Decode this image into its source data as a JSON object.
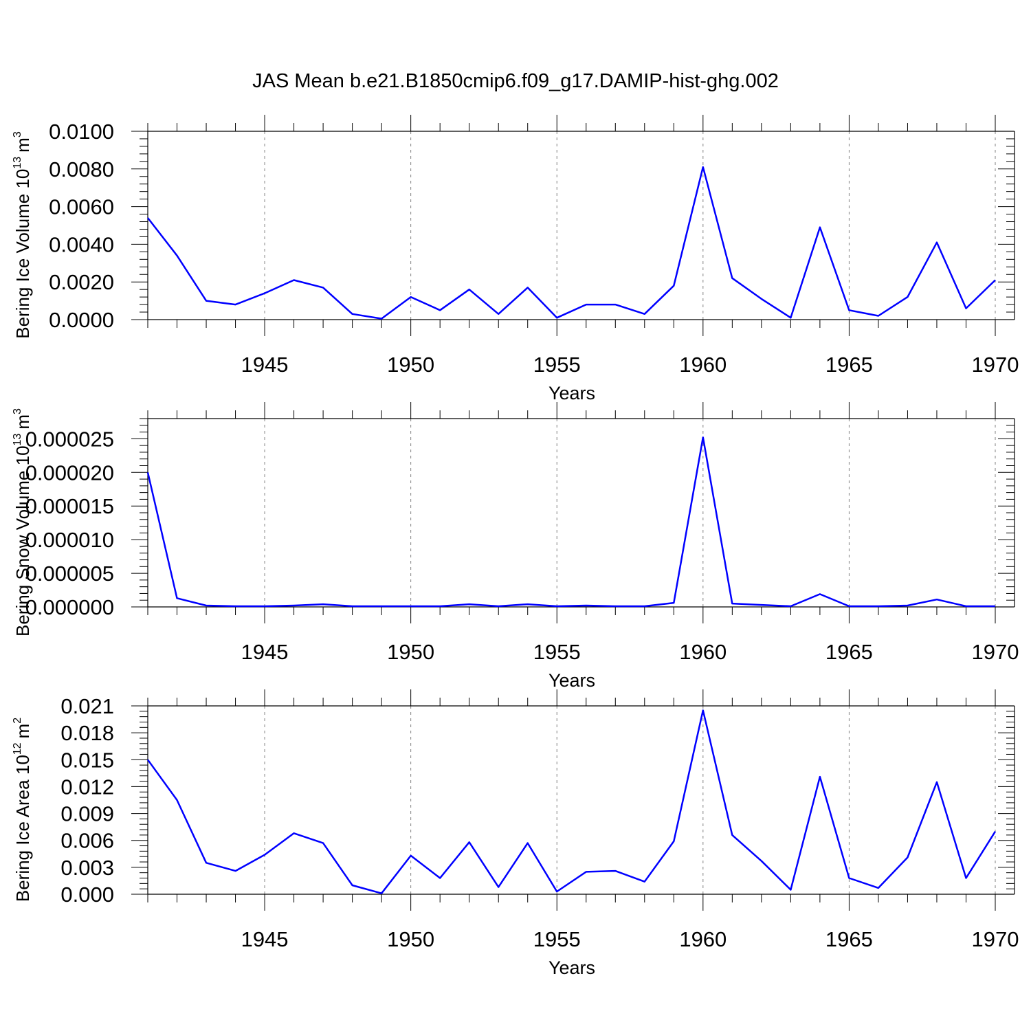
{
  "figure": {
    "title": "JAS Mean b.e21.B1850cmip6.f09_g17.DAMIP-hist-ghg.002"
  },
  "colors": {
    "series_line": "#0000ff",
    "axes": "#000000",
    "grid": "#808080",
    "background": "#ffffff"
  },
  "chart_data": [
    {
      "type": "line",
      "title": "",
      "xlabel": "Years",
      "ylabel": {
        "text": "Bering Ice Volume 10",
        "sup": "13",
        "unit": "m",
        "unit_sup": "3"
      },
      "xlim": [
        1941,
        1970
      ],
      "ylim": [
        0,
        0.01
      ],
      "xticks": [
        1945,
        1950,
        1955,
        1960,
        1965,
        1970
      ],
      "xtick_labels": [
        "1945",
        "1950",
        "1955",
        "1960",
        "1965",
        "1970"
      ],
      "yticks": [
        0,
        0.002,
        0.004,
        0.006,
        0.008,
        0.01
      ],
      "ytick_labels": [
        "0.0000",
        "0.0020",
        "0.0040",
        "0.0060",
        "0.0080",
        "0.0100"
      ],
      "grid": "vertical dashed at major x ticks",
      "x": [
        1941,
        1942,
        1943,
        1944,
        1945,
        1946,
        1947,
        1948,
        1949,
        1950,
        1951,
        1952,
        1953,
        1954,
        1955,
        1956,
        1957,
        1958,
        1959,
        1960,
        1961,
        1962,
        1963,
        1964,
        1965,
        1966,
        1967,
        1968,
        1969,
        1970
      ],
      "series": [
        {
          "values": [
            0.0054,
            0.0034,
            0.001,
            0.0008,
            0.0014,
            0.0021,
            0.0017,
            0.0003,
            5e-05,
            0.0012,
            0.0005,
            0.0016,
            0.0003,
            0.0017,
            0.0001,
            0.0008,
            0.0008,
            0.0003,
            0.0018,
            0.0081,
            0.0022,
            0.0011,
            0.0001,
            0.0049,
            0.0005,
            0.0002,
            0.0012,
            0.0041,
            0.0006,
            0.0021
          ]
        }
      ]
    },
    {
      "type": "line",
      "title": "",
      "xlabel": "Years",
      "ylabel": {
        "text": "Bering Snow Volume 10",
        "sup": "13",
        "unit": "m",
        "unit_sup": "3"
      },
      "xlim": [
        1941,
        1970
      ],
      "ylim": [
        0,
        2.8e-05
      ],
      "xticks": [
        1945,
        1950,
        1955,
        1960,
        1965,
        1970
      ],
      "xtick_labels": [
        "1945",
        "1950",
        "1955",
        "1960",
        "1965",
        "1970"
      ],
      "yticks": [
        0,
        5e-06,
        1e-05,
        1.5e-05,
        2e-05,
        2.5e-05
      ],
      "ytick_labels": [
        "0.000000",
        "0.000005",
        "0.000010",
        "0.000015",
        "0.000020",
        "0.000025"
      ],
      "grid": "vertical dashed at major x ticks",
      "x": [
        1941,
        1942,
        1943,
        1944,
        1945,
        1946,
        1947,
        1948,
        1949,
        1950,
        1951,
        1952,
        1953,
        1954,
        1955,
        1956,
        1957,
        1958,
        1959,
        1960,
        1961,
        1962,
        1963,
        1964,
        1965,
        1966,
        1967,
        1968,
        1969,
        1970
      ],
      "series": [
        {
          "values": [
            2e-05,
            1.3e-06,
            2e-07,
            1e-07,
            1e-07,
            2e-07,
            4e-07,
            1e-07,
            1e-07,
            1e-07,
            1e-07,
            4e-07,
            1e-07,
            4e-07,
            1e-07,
            2e-07,
            1e-07,
            1e-07,
            6e-07,
            2.52e-05,
            5e-07,
            3e-07,
            1e-07,
            1.9e-06,
            1e-07,
            1e-07,
            2e-07,
            1.1e-06,
            1e-07,
            1e-07
          ]
        }
      ]
    },
    {
      "type": "line",
      "title": "",
      "xlabel": "Years",
      "ylabel": {
        "text": "Bering Ice Area 10",
        "sup": "12",
        "unit": "m",
        "unit_sup": "2"
      },
      "xlim": [
        1941,
        1970
      ],
      "ylim": [
        0,
        0.021
      ],
      "xticks": [
        1945,
        1950,
        1955,
        1960,
        1965,
        1970
      ],
      "xtick_labels": [
        "1945",
        "1950",
        "1955",
        "1960",
        "1965",
        "1970"
      ],
      "yticks": [
        0,
        0.003,
        0.006,
        0.009,
        0.012,
        0.015,
        0.018,
        0.021
      ],
      "ytick_labels": [
        "0.000",
        "0.003",
        "0.006",
        "0.009",
        "0.012",
        "0.015",
        "0.018",
        "0.021"
      ],
      "grid": "vertical dashed at major x ticks",
      "x": [
        1941,
        1942,
        1943,
        1944,
        1945,
        1946,
        1947,
        1948,
        1949,
        1950,
        1951,
        1952,
        1953,
        1954,
        1955,
        1956,
        1957,
        1958,
        1959,
        1960,
        1961,
        1962,
        1963,
        1964,
        1965,
        1966,
        1967,
        1968,
        1969,
        1970
      ],
      "series": [
        {
          "values": [
            0.015,
            0.0105,
            0.0035,
            0.0026,
            0.0044,
            0.0068,
            0.0057,
            0.001,
            0.0001,
            0.0043,
            0.0018,
            0.0058,
            0.0008,
            0.0057,
            0.0003,
            0.0025,
            0.0026,
            0.0014,
            0.0059,
            0.0205,
            0.0066,
            0.0037,
            0.0005,
            0.0131,
            0.0018,
            0.0007,
            0.0041,
            0.0125,
            0.0018,
            0.007
          ]
        }
      ]
    }
  ]
}
